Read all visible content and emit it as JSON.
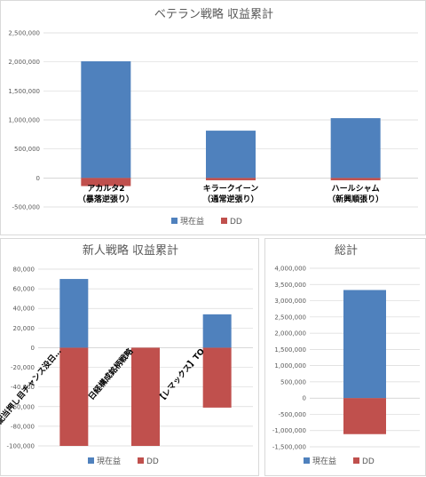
{
  "colors": {
    "current": "#4f81bd",
    "dd": "#c0504d",
    "grid": "#d9d9d9",
    "axis": "#bfbfbf"
  },
  "chart_data": [
    {
      "id": "veteran",
      "type": "bar",
      "title": "ベテラン戦略 収益累計",
      "categories": [
        [
          "アカルタ2",
          "（暴落逆張り）"
        ],
        [
          "キラークイーン",
          "（通常逆張り）"
        ],
        [
          "ハールシャム",
          "（新興順張り）"
        ]
      ],
      "series": [
        {
          "name": "現在益",
          "values": [
            2010000,
            815000,
            1030000
          ]
        },
        {
          "name": "DD",
          "values": [
            -140000,
            -40000,
            -40000
          ]
        }
      ],
      "ylim": [
        -500000,
        2500000
      ],
      "yticks": [
        -500000,
        0,
        500000,
        1000000,
        1500000,
        2000000,
        2500000
      ],
      "tick_labels": [
        "-500,000",
        "0",
        "500,000",
        "1,000,000",
        "1,500,000",
        "2,000,000",
        "2,500,000"
      ],
      "legend_position": "bottom",
      "grid": true
    },
    {
      "id": "newbie",
      "type": "bar",
      "title": "新人戦略 収益累計",
      "categories": [
        [
          "高配当押し目チャンス没日…"
        ],
        [
          "日経構成銘柄戦略"
        ],
        [
          "【レマックス】TO"
        ]
      ],
      "series": [
        {
          "name": "現在益",
          "values": [
            70000,
            0,
            34000
          ]
        },
        {
          "name": "DD",
          "values": [
            -100000,
            -100000,
            -61000
          ]
        }
      ],
      "ylim": [
        -100000,
        80000
      ],
      "yticks": [
        -100000,
        -80000,
        -60000,
        -40000,
        -20000,
        0,
        20000,
        40000,
        60000,
        80000
      ],
      "tick_labels": [
        "-100,000",
        "-80,000",
        "-60,000",
        "-40,000",
        "-20,000",
        "0",
        "20,000",
        "40,000",
        "60,000",
        "80,000"
      ],
      "legend_position": "bottom",
      "grid": true
    },
    {
      "id": "total",
      "type": "bar",
      "title": "総計",
      "categories": [
        [
          ""
        ]
      ],
      "series": [
        {
          "name": "現在益",
          "values": [
            3330000
          ]
        },
        {
          "name": "DD",
          "values": [
            -1110000
          ]
        }
      ],
      "ylim": [
        -1500000,
        4000000
      ],
      "yticks": [
        -1500000,
        -1000000,
        -500000,
        0,
        500000,
        1000000,
        1500000,
        2000000,
        2500000,
        3000000,
        3500000,
        4000000
      ],
      "tick_labels": [
        "-1,500,000",
        "-1,000,000",
        "-500,000",
        "0",
        "500,000",
        "1,000,000",
        "1,500,000",
        "2,000,000",
        "2,500,000",
        "3,000,000",
        "3,500,000",
        "4,000,000"
      ],
      "legend_position": "bottom",
      "grid": true
    }
  ]
}
